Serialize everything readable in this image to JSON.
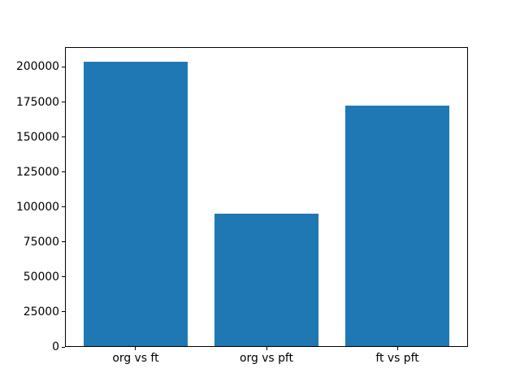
{
  "chart_data": {
    "type": "bar",
    "title": "",
    "xlabel": "",
    "ylabel": "",
    "categories": [
      "org vs ft",
      "org vs pft",
      "ft vs pft"
    ],
    "values": [
      204000,
      95300,
      172500
    ],
    "bar_color": "#1f77b4",
    "background_color": "#ffffff",
    "spine_color": "#000000",
    "text_color": "#000000",
    "ylim": [
      0,
      214200
    ],
    "xlim": [
      -0.54,
      2.54
    ],
    "bar_width": 0.8,
    "yticks": [
      0,
      25000,
      50000,
      75000,
      100000,
      125000,
      150000,
      175000,
      200000
    ],
    "yticklabels": [
      "0",
      "25000",
      "50000",
      "75000",
      "100000",
      "125000",
      "150000",
      "175000",
      "200000"
    ],
    "grid": false,
    "legend": false
  }
}
